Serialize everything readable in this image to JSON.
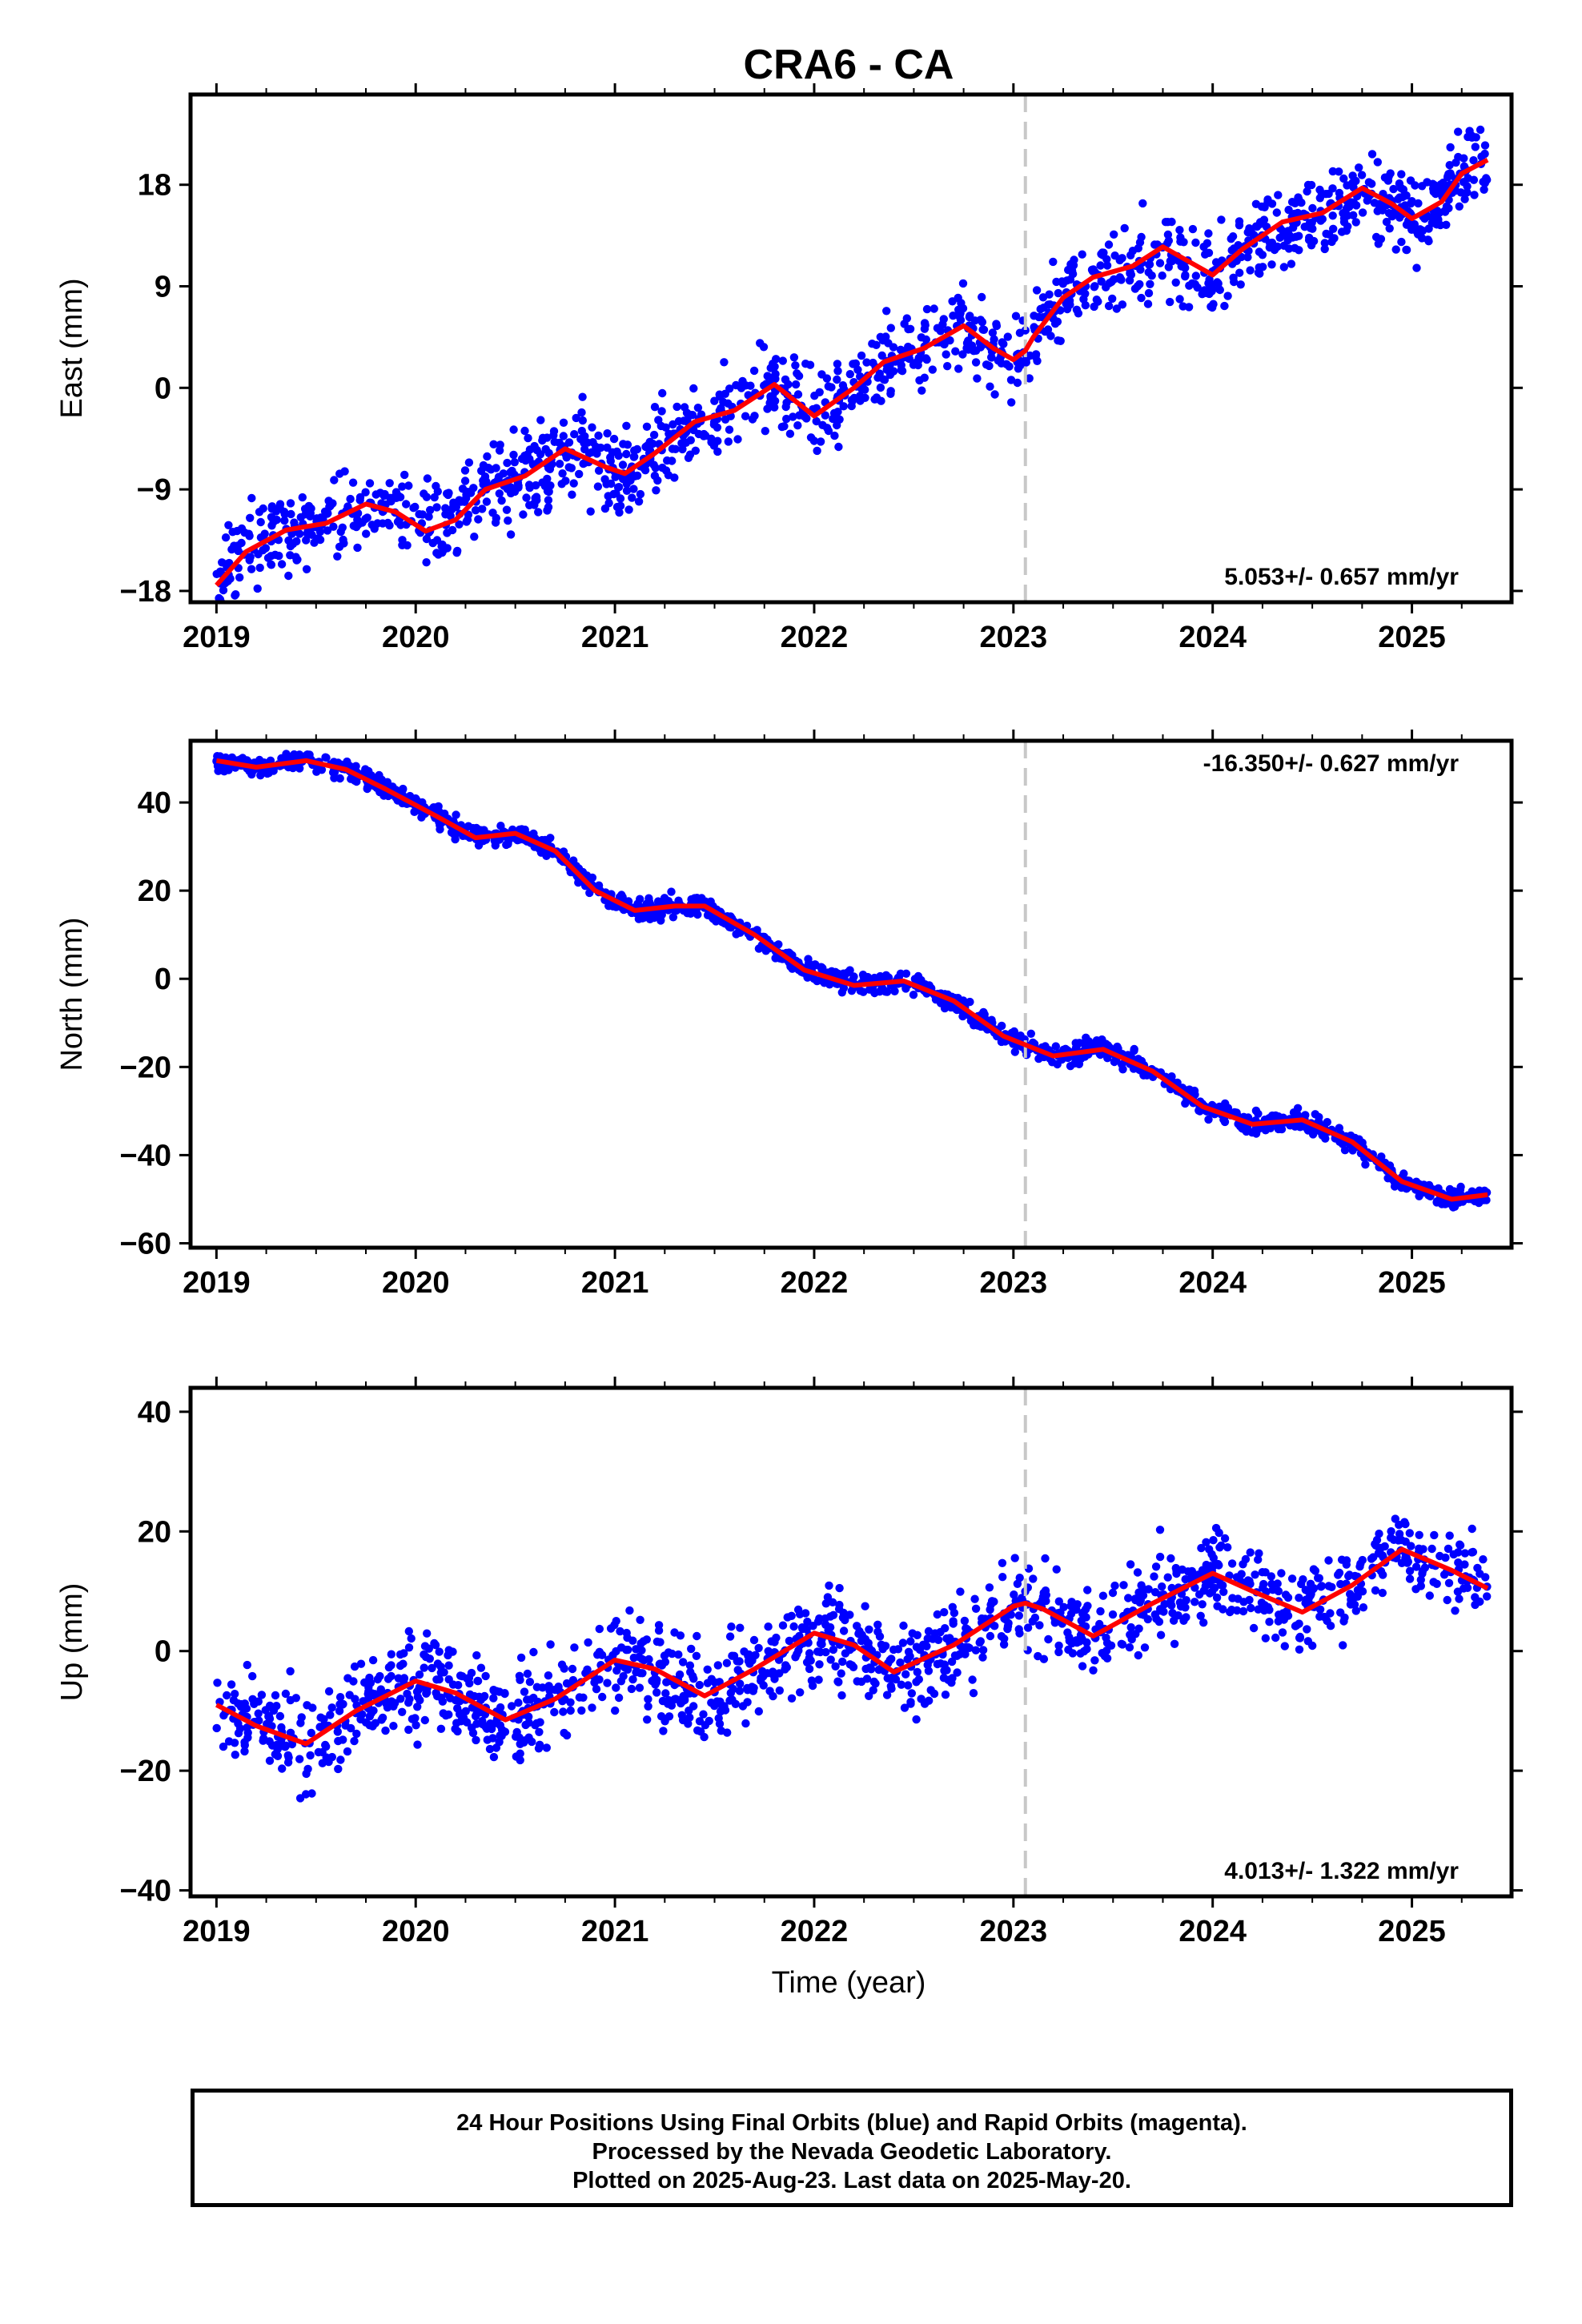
{
  "chart_data": {
    "type": "scatter",
    "title": "CRA6 - CA",
    "x_label": "Time (year)",
    "x_ticks": [
      "2019",
      "2020",
      "2021",
      "2022",
      "2023",
      "2024",
      "2025"
    ],
    "xlim": [
      2018.87,
      2025.5
    ],
    "data_range": [
      2019.0,
      2025.38
    ],
    "equipment_change": 2023.06,
    "colors": {
      "points": "#0000ff",
      "fit": "#ff0000",
      "marker_line": "#c8c8c8"
    },
    "panels": [
      {
        "name": "east",
        "ylabel": "East (mm)",
        "ylim": [
          -19,
          26
        ],
        "y_ticks": [
          "18",
          "9",
          "0",
          "-9",
          "-18"
        ],
        "rate": "5.053+/- 0.657 mm/yr",
        "rate_position": "bottom-right",
        "fit": [
          [
            2019.0,
            -17.5
          ],
          [
            2019.15,
            -14.5
          ],
          [
            2019.35,
            -12.6
          ],
          [
            2019.55,
            -12
          ],
          [
            2019.75,
            -10.3
          ],
          [
            2019.9,
            -11
          ],
          [
            2020.05,
            -12.7
          ],
          [
            2020.2,
            -11.7
          ],
          [
            2020.35,
            -9
          ],
          [
            2020.55,
            -7.8
          ],
          [
            2020.75,
            -5.4
          ],
          [
            2020.95,
            -7
          ],
          [
            2021.05,
            -7.6
          ],
          [
            2021.2,
            -5.8
          ],
          [
            2021.4,
            -3
          ],
          [
            2021.6,
            -2
          ],
          [
            2021.8,
            0.3
          ],
          [
            2022.0,
            -2.5
          ],
          [
            2022.2,
            0
          ],
          [
            2022.35,
            2.3
          ],
          [
            2022.55,
            3.5
          ],
          [
            2022.75,
            5.5
          ],
          [
            2022.9,
            3.5
          ],
          [
            2023.0,
            2.5
          ],
          [
            2023.06,
            3.3
          ],
          [
            2023.1,
            4.5
          ],
          [
            2023.25,
            8
          ],
          [
            2023.4,
            9.8
          ],
          [
            2023.6,
            10.8
          ],
          [
            2023.75,
            12.5
          ],
          [
            2023.9,
            11
          ],
          [
            2024.0,
            10
          ],
          [
            2024.15,
            12.3
          ],
          [
            2024.35,
            14.7
          ],
          [
            2024.55,
            15.5
          ],
          [
            2024.75,
            17.7
          ],
          [
            2024.9,
            16.3
          ],
          [
            2025.0,
            15
          ],
          [
            2025.15,
            16.5
          ],
          [
            2025.25,
            19
          ],
          [
            2025.38,
            20.2
          ]
        ],
        "trend": {
          "start": -14,
          "end": 18,
          "noise": 2.6
        }
      },
      {
        "name": "north",
        "ylabel": "North (mm)",
        "ylim": [
          -61,
          54
        ],
        "y_ticks": [
          "40",
          "20",
          "0",
          "-20",
          "-40",
          "-60"
        ],
        "rate": "-16.350+/- 0.627 mm/yr",
        "rate_position": "top-right",
        "fit": [
          [
            2019.0,
            49.5
          ],
          [
            2019.2,
            48
          ],
          [
            2019.45,
            49.5
          ],
          [
            2019.65,
            47.5
          ],
          [
            2019.85,
            43
          ],
          [
            2020.1,
            37
          ],
          [
            2020.3,
            32
          ],
          [
            2020.5,
            33
          ],
          [
            2020.7,
            29
          ],
          [
            2020.9,
            20
          ],
          [
            2021.1,
            15.5
          ],
          [
            2021.3,
            16.5
          ],
          [
            2021.45,
            16.5
          ],
          [
            2021.7,
            10
          ],
          [
            2021.95,
            2
          ],
          [
            2022.2,
            -1.5
          ],
          [
            2022.45,
            -0.5
          ],
          [
            2022.7,
            -5
          ],
          [
            2022.95,
            -13
          ],
          [
            2023.2,
            -17.5
          ],
          [
            2023.45,
            -16
          ],
          [
            2023.7,
            -21
          ],
          [
            2023.95,
            -29
          ],
          [
            2024.2,
            -33
          ],
          [
            2024.45,
            -32
          ],
          [
            2024.7,
            -37
          ],
          [
            2024.95,
            -46
          ],
          [
            2025.2,
            -50
          ],
          [
            2025.38,
            -49
          ]
        ],
        "trend": {
          "start": 49,
          "end": -52,
          "noise": 1.6
        }
      },
      {
        "name": "up",
        "ylabel": "Up (mm)",
        "ylim": [
          -41,
          44
        ],
        "y_ticks": [
          "40",
          "20",
          "0",
          "-20",
          "-40"
        ],
        "rate": "4.013+/- 1.322 mm/yr",
        "rate_position": "bottom-right",
        "fit": [
          [
            2019.0,
            -9
          ],
          [
            2019.2,
            -12.5
          ],
          [
            2019.45,
            -15.5
          ],
          [
            2019.7,
            -10
          ],
          [
            2020.0,
            -5
          ],
          [
            2020.2,
            -7
          ],
          [
            2020.45,
            -11.5
          ],
          [
            2020.7,
            -8
          ],
          [
            2021.0,
            -1.5
          ],
          [
            2021.2,
            -3
          ],
          [
            2021.45,
            -7.5
          ],
          [
            2021.7,
            -3
          ],
          [
            2022.0,
            3
          ],
          [
            2022.2,
            1
          ],
          [
            2022.4,
            -3.5
          ],
          [
            2022.7,
            1
          ],
          [
            2023.0,
            7.5
          ],
          [
            2023.06,
            8
          ],
          [
            2023.15,
            7
          ],
          [
            2023.4,
            2.5
          ],
          [
            2023.7,
            8
          ],
          [
            2024.0,
            13
          ],
          [
            2024.2,
            10
          ],
          [
            2024.45,
            6.5
          ],
          [
            2024.7,
            11
          ],
          [
            2024.95,
            17
          ],
          [
            2025.2,
            13.5
          ],
          [
            2025.38,
            10.5
          ]
        ],
        "trend": {
          "start": -10,
          "end": 12,
          "noise": 5.5
        }
      }
    ]
  },
  "footer": {
    "line1": "24 Hour Positions Using Final Orbits (blue) and Rapid Orbits (magenta).",
    "line2": "Processed by the Nevada Geodetic Laboratory.",
    "line3": "Plotted on 2025-Aug-23. Last data on 2025-May-20."
  }
}
